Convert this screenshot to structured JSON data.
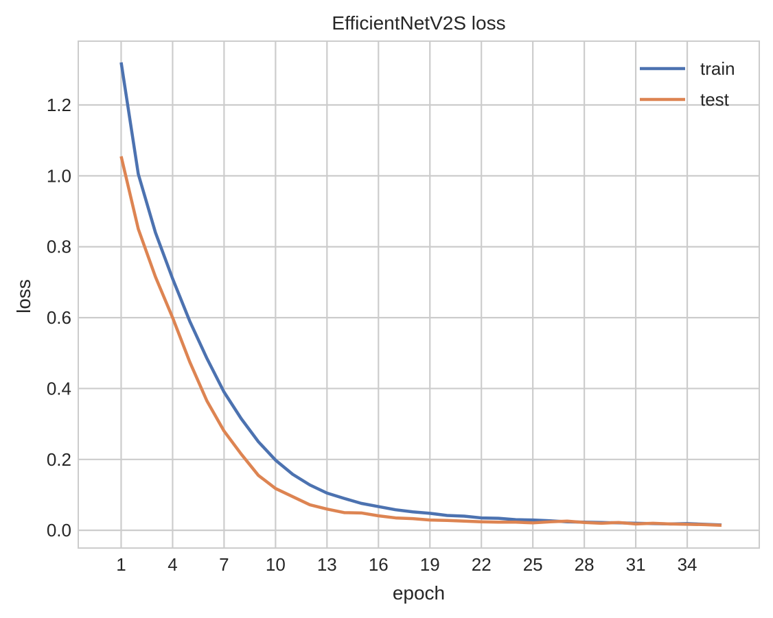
{
  "chart_data": {
    "type": "line",
    "title": "EfficientNetV2S loss",
    "xlabel": "epoch",
    "ylabel": "loss",
    "xlim": [
      -1.5,
      38.2
    ],
    "ylim": [
      -0.05,
      1.38
    ],
    "xticks": [
      1,
      4,
      7,
      10,
      13,
      16,
      19,
      22,
      25,
      28,
      31,
      34
    ],
    "xtick_labels": [
      "1",
      "4",
      "7",
      "10",
      "13",
      "16",
      "19",
      "22",
      "25",
      "28",
      "31",
      "34"
    ],
    "yticks": [
      0.0,
      0.2,
      0.4,
      0.6,
      0.8,
      1.0,
      1.2
    ],
    "ytick_labels": [
      "0.0",
      "0.2",
      "0.4",
      "0.6",
      "0.8",
      "1.0",
      "1.2"
    ],
    "grid": true,
    "legend_position": "top-right",
    "x": [
      1,
      2,
      3,
      4,
      5,
      6,
      7,
      8,
      9,
      10,
      11,
      12,
      13,
      14,
      15,
      16,
      17,
      18,
      19,
      20,
      21,
      22,
      23,
      24,
      25,
      26,
      27,
      28,
      29,
      30,
      31,
      32,
      33,
      34,
      35,
      36
    ],
    "series": [
      {
        "name": "train",
        "color": "#4c72b0",
        "values": [
          1.32,
          1.005,
          0.84,
          0.71,
          0.59,
          0.485,
          0.39,
          0.315,
          0.25,
          0.198,
          0.158,
          0.128,
          0.105,
          0.09,
          0.076,
          0.067,
          0.058,
          0.052,
          0.048,
          0.042,
          0.04,
          0.035,
          0.034,
          0.03,
          0.029,
          0.027,
          0.024,
          0.023,
          0.022,
          0.021,
          0.02,
          0.019,
          0.018,
          0.019,
          0.017,
          0.015
        ]
      },
      {
        "name": "test",
        "color": "#dd8452",
        "values": [
          1.055,
          0.85,
          0.715,
          0.6,
          0.475,
          0.365,
          0.28,
          0.215,
          0.155,
          0.118,
          0.095,
          0.072,
          0.06,
          0.05,
          0.049,
          0.041,
          0.035,
          0.033,
          0.029,
          0.028,
          0.026,
          0.024,
          0.023,
          0.023,
          0.021,
          0.024,
          0.026,
          0.022,
          0.02,
          0.022,
          0.018,
          0.02,
          0.018,
          0.017,
          0.016,
          0.014
        ]
      }
    ]
  }
}
